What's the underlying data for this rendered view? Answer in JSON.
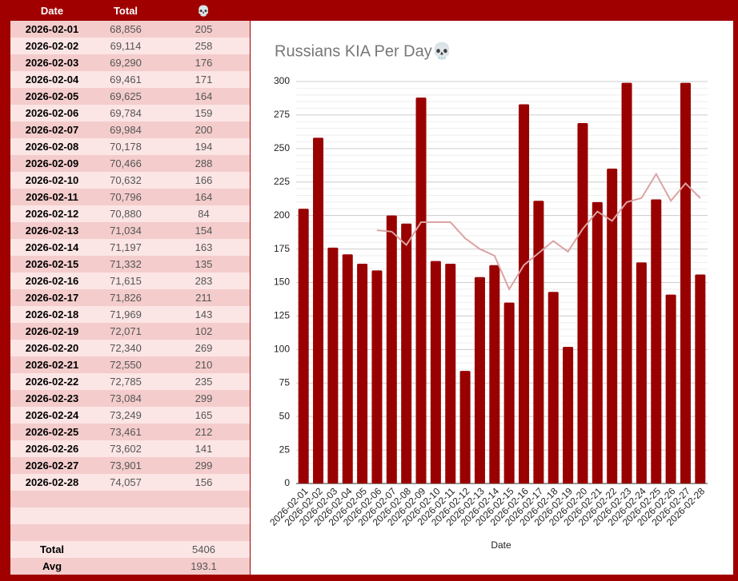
{
  "table": {
    "header": [
      "Date",
      "Total",
      "💀"
    ],
    "rows": [
      [
        "2026-02-01",
        "68,856",
        "205"
      ],
      [
        "2026-02-02",
        "69,114",
        "258"
      ],
      [
        "2026-02-03",
        "69,290",
        "176"
      ],
      [
        "2026-02-04",
        "69,461",
        "171"
      ],
      [
        "2026-02-05",
        "69,625",
        "164"
      ],
      [
        "2026-02-06",
        "69,784",
        "159"
      ],
      [
        "2026-02-07",
        "69,984",
        "200"
      ],
      [
        "2026-02-08",
        "70,178",
        "194"
      ],
      [
        "2026-02-09",
        "70,466",
        "288"
      ],
      [
        "2026-02-10",
        "70,632",
        "166"
      ],
      [
        "2026-02-11",
        "70,796",
        "164"
      ],
      [
        "2026-02-12",
        "70,880",
        "84"
      ],
      [
        "2026-02-13",
        "71,034",
        "154"
      ],
      [
        "2026-02-14",
        "71,197",
        "163"
      ],
      [
        "2026-02-15",
        "71,332",
        "135"
      ],
      [
        "2026-02-16",
        "71,615",
        "283"
      ],
      [
        "2026-02-17",
        "71,826",
        "211"
      ],
      [
        "2026-02-18",
        "71,969",
        "143"
      ],
      [
        "2026-02-19",
        "72,071",
        "102"
      ],
      [
        "2026-02-20",
        "72,340",
        "269"
      ],
      [
        "2026-02-21",
        "72,550",
        "210"
      ],
      [
        "2026-02-22",
        "72,785",
        "235"
      ],
      [
        "2026-02-23",
        "73,084",
        "299"
      ],
      [
        "2026-02-24",
        "73,249",
        "165"
      ],
      [
        "2026-02-25",
        "73,461",
        "212"
      ],
      [
        "2026-02-26",
        "73,602",
        "141"
      ],
      [
        "2026-02-27",
        "73,901",
        "299"
      ],
      [
        "2026-02-28",
        "74,057",
        "156"
      ]
    ],
    "summary": [
      [
        "Total",
        "5406"
      ],
      [
        "Avg",
        "193.1"
      ]
    ]
  },
  "chart_data": {
    "type": "bar",
    "title": "Russians KIA Per Day💀",
    "x_label": "Date",
    "categories": [
      "2026-02-01",
      "2026-02-02",
      "2026-02-03",
      "2026-02-04",
      "2026-02-05",
      "2026-02-06",
      "2026-02-07",
      "2026-02-08",
      "2026-02-09",
      "2026-02-10",
      "2026-02-11",
      "2026-02-12",
      "2026-02-13",
      "2026-02-14",
      "2026-02-15",
      "2026-02-16",
      "2026-02-17",
      "2026-02-18",
      "2026-02-19",
      "2026-02-20",
      "2026-02-21",
      "2026-02-22",
      "2026-02-23",
      "2026-02-24",
      "2026-02-25",
      "2026-02-26",
      "2026-02-27",
      "2026-02-28"
    ],
    "series": [
      {
        "type": "bar",
        "color": "#990000",
        "values": [
          205,
          258,
          176,
          171,
          164,
          159,
          200,
          194,
          288,
          166,
          164,
          84,
          154,
          163,
          135,
          283,
          211,
          143,
          102,
          269,
          210,
          235,
          299,
          165,
          212,
          141,
          299,
          156
        ]
      },
      {
        "type": "line",
        "color": "#dba3a3",
        "values": [
          null,
          null,
          null,
          null,
          null,
          189,
          188,
          178,
          195,
          195,
          195,
          183,
          175,
          170,
          145,
          163,
          172,
          181,
          173,
          190,
          203,
          196,
          210,
          213,
          231,
          211,
          224,
          213
        ]
      }
    ],
    "ylim": [
      0,
      300
    ],
    "yticks": [
      0,
      25,
      50,
      75,
      100,
      125,
      150,
      175,
      200,
      225,
      250,
      275,
      300
    ],
    "grid": true
  }
}
